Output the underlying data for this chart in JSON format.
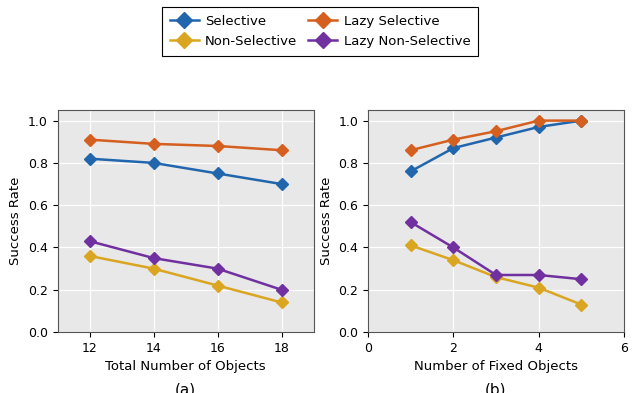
{
  "plot_a": {
    "x": [
      12,
      14,
      16,
      18
    ],
    "selective": [
      0.82,
      0.8,
      0.75,
      0.7
    ],
    "lazy_selective": [
      0.91,
      0.89,
      0.88,
      0.86
    ],
    "non_selective": [
      0.36,
      0.3,
      0.22,
      0.14
    ],
    "lazy_non_selective": [
      0.43,
      0.35,
      0.3,
      0.2
    ],
    "xlabel": "Total Number of Objects",
    "ylabel": "Success Rate",
    "label": "(a)",
    "xlim": [
      11,
      19
    ],
    "xticks": [
      12,
      14,
      16,
      18
    ],
    "ylim": [
      0,
      1.05
    ],
    "yticks": [
      0,
      0.2,
      0.4,
      0.6,
      0.8,
      1.0
    ]
  },
  "plot_b": {
    "x": [
      1,
      2,
      3,
      4,
      5
    ],
    "selective": [
      0.76,
      0.87,
      0.92,
      0.97,
      1.0
    ],
    "lazy_selective": [
      0.86,
      0.91,
      0.95,
      1.0,
      1.0
    ],
    "non_selective": [
      0.41,
      0.34,
      0.26,
      0.21,
      0.13
    ],
    "lazy_non_selective": [
      0.52,
      0.4,
      0.27,
      0.27,
      0.25
    ],
    "xlabel": "Number of Fixed Objects",
    "ylabel": "Success Rate",
    "label": "(b)",
    "xlim": [
      0,
      6
    ],
    "xticks": [
      0,
      2,
      4,
      6
    ],
    "ylim": [
      0,
      1.05
    ],
    "yticks": [
      0,
      0.2,
      0.4,
      0.6,
      0.8,
      1.0
    ]
  },
  "colors": {
    "selective": "#2166ac",
    "lazy_selective": "#d45f1e",
    "non_selective": "#daa520",
    "lazy_non_selective": "#7030a0"
  },
  "marker": "D",
  "markersize": 6,
  "linewidth": 1.8,
  "background_color": "#e8e8e8"
}
